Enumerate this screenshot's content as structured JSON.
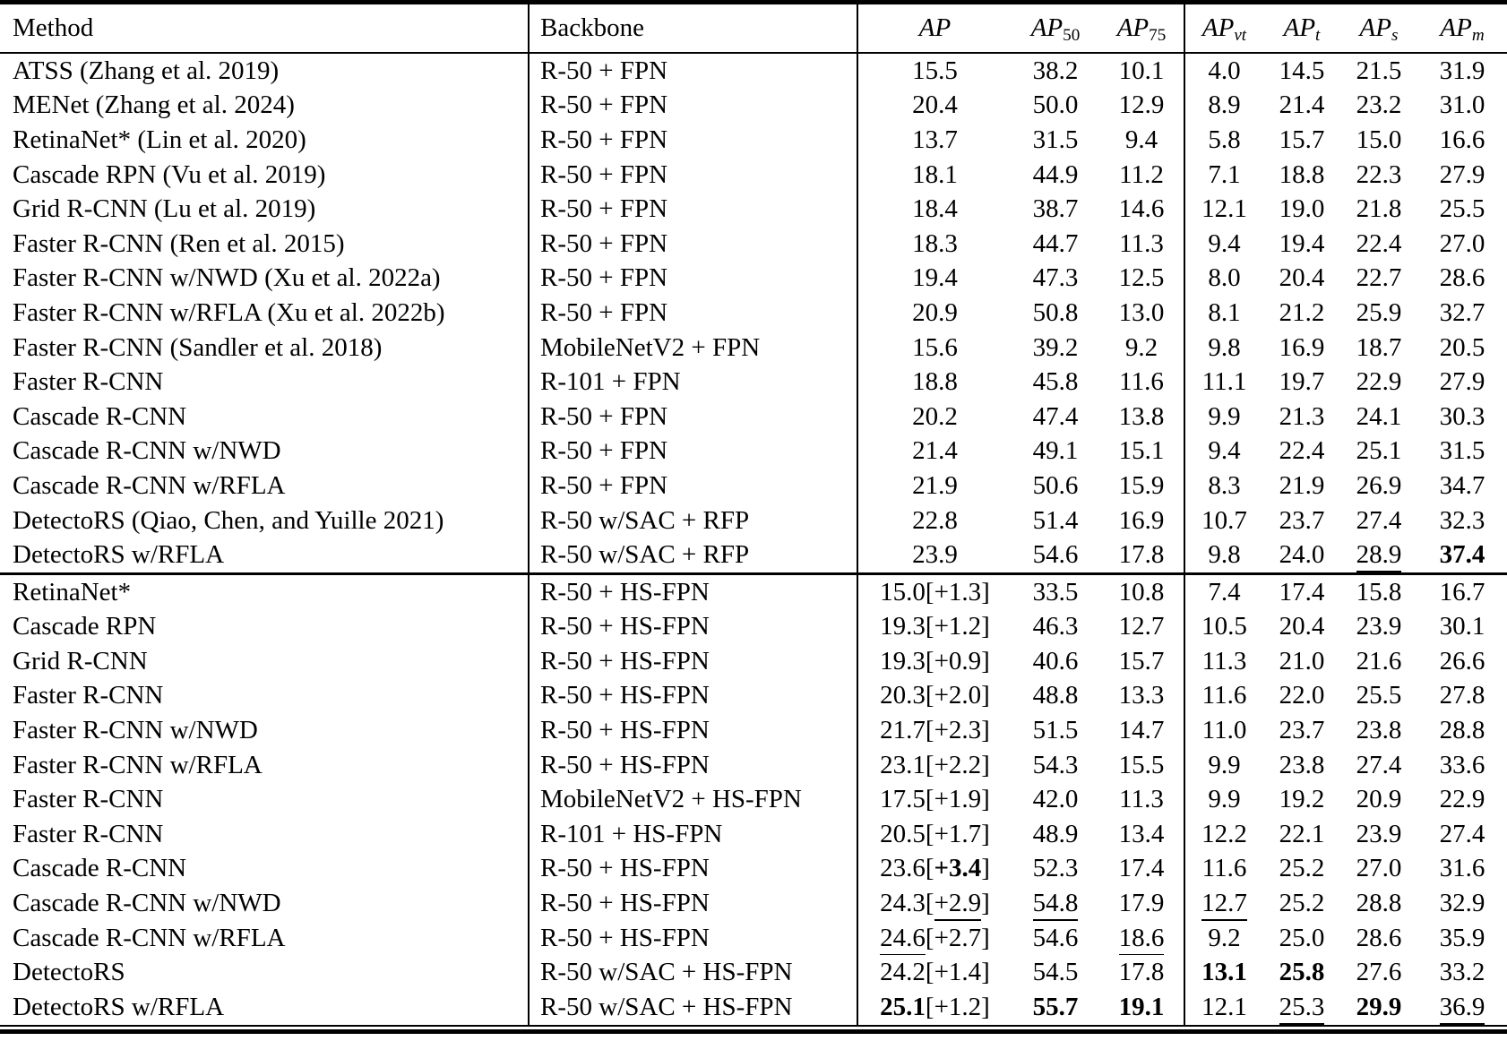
{
  "styles": {
    "background": "#ffffff",
    "text_color": "#000000",
    "rule_color": "#000000"
  },
  "table": {
    "columns": [
      {
        "key": "method",
        "label": "Method"
      },
      {
        "key": "backbone",
        "label": "Backbone"
      },
      {
        "key": "ap",
        "label": "AP",
        "italic": true
      },
      {
        "key": "ap50",
        "label": "AP",
        "sub": "50",
        "italic": true
      },
      {
        "key": "ap75",
        "label": "AP",
        "sub": "75",
        "italic": true
      },
      {
        "key": "apvt",
        "label": "AP",
        "sub": "vt",
        "italic": true,
        "sub_italic": true
      },
      {
        "key": "apt",
        "label": "AP",
        "sub": "t",
        "italic": true,
        "sub_italic": true
      },
      {
        "key": "aps",
        "label": "AP",
        "sub": "s",
        "italic": true,
        "sub_italic": true
      },
      {
        "key": "apm",
        "label": "AP",
        "sub": "m",
        "italic": true,
        "sub_italic": true
      }
    ],
    "blocks": [
      {
        "name": "fpn-baselines",
        "rows": [
          {
            "method": "ATSS (Zhang et al. 2019)",
            "backbone": "R-50 + FPN",
            "values": [
              "15.5",
              "38.2",
              "10.1",
              "4.0",
              "14.5",
              "21.5",
              "31.9"
            ]
          },
          {
            "method": "MENet (Zhang et al. 2024)",
            "backbone": "R-50 + FPN",
            "values": [
              "20.4",
              "50.0",
              "12.9",
              "8.9",
              "21.4",
              "23.2",
              "31.0"
            ]
          },
          {
            "method": "RetinaNet* (Lin et al. 2020)",
            "backbone": "R-50 + FPN",
            "values": [
              "13.7",
              "31.5",
              "9.4",
              "5.8",
              "15.7",
              "15.0",
              "16.6"
            ]
          },
          {
            "method": "Cascade RPN (Vu et al. 2019)",
            "backbone": "R-50 + FPN",
            "values": [
              "18.1",
              "44.9",
              "11.2",
              "7.1",
              "18.8",
              "22.3",
              "27.9"
            ]
          },
          {
            "method": "Grid R-CNN (Lu et al. 2019)",
            "backbone": "R-50 + FPN",
            "values": [
              "18.4",
              "38.7",
              "14.6",
              "12.1",
              "19.0",
              "21.8",
              "25.5"
            ]
          },
          {
            "method": "Faster R-CNN (Ren et al. 2015)",
            "backbone": "R-50 + FPN",
            "values": [
              "18.3",
              "44.7",
              "11.3",
              "9.4",
              "19.4",
              "22.4",
              "27.0"
            ]
          },
          {
            "method": "Faster R-CNN w/NWD (Xu et al. 2022a)",
            "backbone": "R-50 + FPN",
            "values": [
              "19.4",
              "47.3",
              "12.5",
              "8.0",
              "20.4",
              "22.7",
              "28.6"
            ]
          },
          {
            "method": "Faster R-CNN w/RFLA (Xu et al. 2022b)",
            "backbone": "R-50 + FPN",
            "values": [
              "20.9",
              "50.8",
              "13.0",
              "8.1",
              "21.2",
              "25.9",
              "32.7"
            ]
          },
          {
            "method": "Faster R-CNN (Sandler et al. 2018)",
            "backbone": "MobileNetV2 + FPN",
            "values": [
              "15.6",
              "39.2",
              "9.2",
              "9.8",
              "16.9",
              "18.7",
              "20.5"
            ]
          },
          {
            "method": "Faster R-CNN",
            "backbone": "R-101 + FPN",
            "values": [
              "18.8",
              "45.8",
              "11.6",
              "11.1",
              "19.7",
              "22.9",
              "27.9"
            ]
          },
          {
            "method": "Cascade R-CNN",
            "backbone": "R-50 + FPN",
            "values": [
              "20.2",
              "47.4",
              "13.8",
              "9.9",
              "21.3",
              "24.1",
              "30.3"
            ]
          },
          {
            "method": "Cascade R-CNN w/NWD",
            "backbone": "R-50 + FPN",
            "values": [
              "21.4",
              "49.1",
              "15.1",
              "9.4",
              "22.4",
              "25.1",
              "31.5"
            ]
          },
          {
            "method": "Cascade R-CNN w/RFLA",
            "backbone": "R-50 + FPN",
            "values": [
              "21.9",
              "50.6",
              "15.9",
              "8.3",
              "21.9",
              "26.9",
              "34.7"
            ]
          },
          {
            "method": "DetectoRS (Qiao, Chen, and Yuille 2021)",
            "backbone": "R-50 w/SAC + RFP",
            "values": [
              "22.8",
              "51.4",
              "16.9",
              "10.7",
              "23.7",
              "27.4",
              "32.3"
            ]
          },
          {
            "method": "DetectoRS w/RFLA",
            "backbone": "R-50 w/SAC + RFP",
            "values": [
              "23.9",
              "54.6",
              "17.8",
              "9.8",
              "24.0",
              [
                [
                  "28.9",
                  "u"
                ]
              ],
              [
                [
                  "37.4",
                  "b"
                ]
              ]
            ]
          }
        ]
      },
      {
        "name": "hs-fpn-results",
        "rows": [
          {
            "method": "RetinaNet*",
            "backbone": "R-50 + HS-FPN",
            "values": [
              [
                [
                  "15.0",
                  ""
                ],
                [
                  "[+1.3]",
                  ""
                ]
              ],
              "33.5",
              "10.8",
              "7.4",
              "17.4",
              "15.8",
              "16.7"
            ]
          },
          {
            "method": "Cascade RPN",
            "backbone": "R-50 + HS-FPN",
            "values": [
              [
                [
                  "19.3",
                  ""
                ],
                [
                  "[+1.2]",
                  ""
                ]
              ],
              "46.3",
              "12.7",
              "10.5",
              "20.4",
              "23.9",
              "30.1"
            ]
          },
          {
            "method": "Grid R-CNN",
            "backbone": "R-50 + HS-FPN",
            "values": [
              [
                [
                  "19.3",
                  ""
                ],
                [
                  "[+0.9]",
                  ""
                ]
              ],
              "40.6",
              "15.7",
              "11.3",
              "21.0",
              "21.6",
              "26.6"
            ]
          },
          {
            "method": "Faster R-CNN",
            "backbone": "R-50 + HS-FPN",
            "values": [
              [
                [
                  "20.3",
                  ""
                ],
                [
                  "[+2.0]",
                  ""
                ]
              ],
              "48.8",
              "13.3",
              "11.6",
              "22.0",
              "25.5",
              "27.8"
            ]
          },
          {
            "method": "Faster R-CNN w/NWD",
            "backbone": "R-50 + HS-FPN",
            "values": [
              [
                [
                  "21.7",
                  ""
                ],
                [
                  "[+2.3]",
                  ""
                ]
              ],
              "51.5",
              "14.7",
              "11.0",
              "23.7",
              "23.8",
              "28.8"
            ]
          },
          {
            "method": "Faster R-CNN w/RFLA",
            "backbone": "R-50 + HS-FPN",
            "values": [
              [
                [
                  "23.1",
                  ""
                ],
                [
                  "[+2.2]",
                  ""
                ]
              ],
              "54.3",
              "15.5",
              "9.9",
              "23.8",
              "27.4",
              "33.6"
            ]
          },
          {
            "method": "Faster R-CNN",
            "backbone": "MobileNetV2 + HS-FPN",
            "values": [
              [
                [
                  "17.5",
                  ""
                ],
                [
                  "[+1.9]",
                  ""
                ]
              ],
              "42.0",
              "11.3",
              "9.9",
              "19.2",
              "20.9",
              "22.9"
            ]
          },
          {
            "method": "Faster R-CNN",
            "backbone": "R-101 + HS-FPN",
            "values": [
              [
                [
                  "20.5",
                  ""
                ],
                [
                  "[+1.7]",
                  ""
                ]
              ],
              "48.9",
              "13.4",
              "12.2",
              "22.1",
              "23.9",
              "27.4"
            ]
          },
          {
            "method": "Cascade R-CNN",
            "backbone": "R-50 + HS-FPN",
            "values": [
              [
                [
                  "23.6",
                  ""
                ],
                [
                  "[",
                  ""
                ],
                [
                  "+3.4",
                  "b"
                ],
                [
                  "]",
                  ""
                ]
              ],
              "52.3",
              "17.4",
              "11.6",
              "25.2",
              "27.0",
              "31.6"
            ]
          },
          {
            "method": "Cascade R-CNN w/NWD",
            "backbone": "R-50 + HS-FPN",
            "values": [
              [
                [
                  "24.3",
                  ""
                ],
                [
                  "[",
                  ""
                ],
                [
                  "+2.9",
                  "u"
                ],
                [
                  "]",
                  ""
                ]
              ],
              [
                [
                  "54.8",
                  "u"
                ]
              ],
              "17.9",
              [
                [
                  "12.7",
                  "u"
                ]
              ],
              "25.2",
              "28.8",
              "32.9"
            ]
          },
          {
            "method": "Cascade R-CNN w/RFLA",
            "backbone": "R-50 + HS-FPN",
            "values": [
              [
                [
                  "24.6",
                  "u"
                ],
                [
                  "[+2.7]",
                  ""
                ]
              ],
              "54.6",
              [
                [
                  "18.6",
                  "u"
                ]
              ],
              "9.2",
              "25.0",
              "28.6",
              "35.9"
            ]
          },
          {
            "method": "DetectoRS",
            "backbone": "R-50 w/SAC + HS-FPN",
            "values": [
              [
                [
                  "24.2",
                  ""
                ],
                [
                  "[+1.4]",
                  ""
                ]
              ],
              "54.5",
              "17.8",
              [
                [
                  "13.1",
                  "b"
                ]
              ],
              [
                [
                  "25.8",
                  "b"
                ]
              ],
              "27.6",
              "33.2"
            ]
          },
          {
            "method": "DetectoRS w/RFLA",
            "backbone": "R-50 w/SAC + HS-FPN",
            "values": [
              [
                [
                  "25.1",
                  "b"
                ],
                [
                  "[+1.2]",
                  ""
                ]
              ],
              [
                [
                  "55.7",
                  "b"
                ]
              ],
              [
                [
                  "19.1",
                  "b"
                ]
              ],
              "12.1",
              [
                [
                  "25.3",
                  "u"
                ]
              ],
              [
                [
                  "29.9",
                  "b"
                ]
              ],
              [
                [
                  "36.9",
                  "u"
                ]
              ]
            ]
          }
        ]
      }
    ]
  }
}
